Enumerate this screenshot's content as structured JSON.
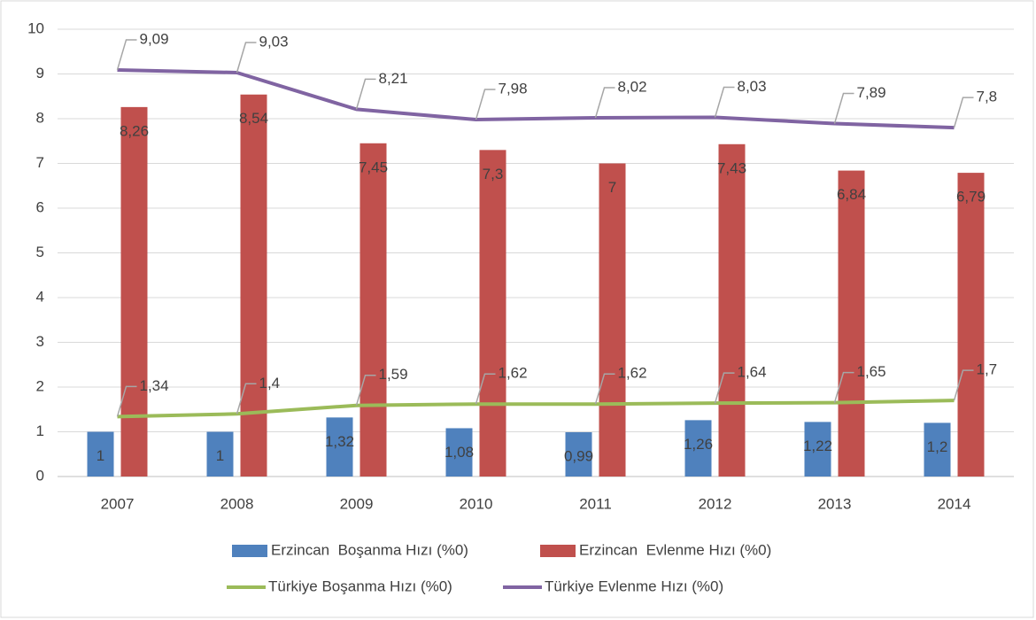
{
  "chart_data": {
    "type": "bar_line",
    "categories": [
      "2007",
      "2008",
      "2009",
      "2010",
      "2011",
      "2012",
      "2013",
      "2014"
    ],
    "series": [
      {
        "name": "Erzincan  Boşanma Hızı (%0)",
        "type": "bar",
        "color": "#4f81bd",
        "values": [
          1,
          1,
          1.32,
          1.08,
          0.99,
          1.26,
          1.22,
          1.2
        ],
        "value_labels": [
          "1",
          "1",
          "1,32",
          "1,08",
          "0,99",
          "1,26",
          "1,22",
          "1,2"
        ]
      },
      {
        "name": "Erzincan  Evlenme Hızı (%0)",
        "type": "bar",
        "color": "#c0504d",
        "values": [
          8.26,
          8.54,
          7.45,
          7.3,
          7,
          7.43,
          6.84,
          6.79
        ],
        "value_labels": [
          "8,26",
          "8,54",
          "7,45",
          "7,3",
          "7",
          "7,43",
          "6,84",
          "6,79"
        ]
      },
      {
        "name": "Türkiye Boşanma Hızı (%0)",
        "type": "line",
        "color": "#9bbb59",
        "values": [
          1.34,
          1.4,
          1.59,
          1.62,
          1.62,
          1.64,
          1.65,
          1.7
        ],
        "value_labels": [
          "1,34",
          "1,4",
          "1,59",
          "1,62",
          "1,62",
          "1,64",
          "1,65",
          "1,7"
        ]
      },
      {
        "name": "Türkiye Evlenme Hızı (%0)",
        "type": "line",
        "color": "#8064a2",
        "values": [
          9.09,
          9.03,
          8.21,
          7.98,
          8.02,
          8.03,
          7.89,
          7.8
        ],
        "value_labels": [
          "9,09",
          "9,03",
          "8,21",
          "7,98",
          "8,02",
          "8,03",
          "7,89",
          "7,8"
        ]
      }
    ],
    "ylim": [
      0,
      10
    ],
    "yticks": [
      0,
      1,
      2,
      3,
      4,
      5,
      6,
      7,
      8,
      9,
      10
    ],
    "grid": true
  }
}
